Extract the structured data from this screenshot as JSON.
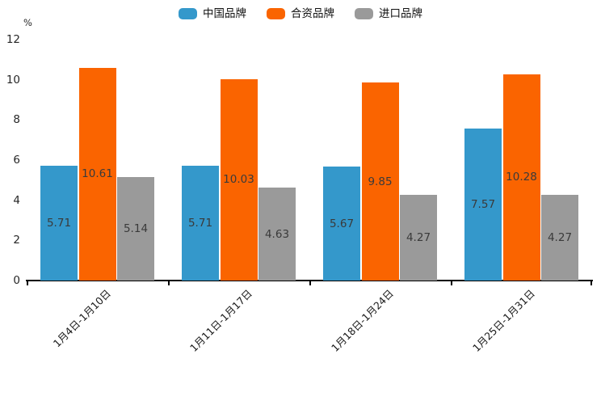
{
  "chart": {
    "unit_label": "%",
    "legend": [
      {
        "name": "中国品牌",
        "color": "#3498cb",
        "icon": "blue-series-swatch-icon"
      },
      {
        "name": "合资品牌",
        "color": "#fa6400",
        "icon": "orange-series-swatch-icon"
      },
      {
        "name": "进口品牌",
        "color": "#9a9a9a",
        "icon": "gray-series-swatch-icon"
      }
    ]
  },
  "chart_data": {
    "type": "bar",
    "title": "",
    "categories": [
      "1月4日-1月10日",
      "1月11日-1月17日",
      "1月18日-1月24日",
      "1月25日-1月31日"
    ],
    "series": [
      {
        "name": "中国品牌",
        "color": "#3498cb",
        "values": [
          5.71,
          5.71,
          5.67,
          7.57
        ]
      },
      {
        "name": "合资品牌",
        "color": "#fa6400",
        "values": [
          10.61,
          10.03,
          9.85,
          10.28
        ]
      },
      {
        "name": "进口品牌",
        "color": "#9a9a9a",
        "values": [
          5.14,
          4.63,
          4.27,
          4.27
        ]
      }
    ],
    "xlabel": "",
    "ylabel": "%",
    "ylim": [
      0,
      12
    ],
    "yticks": [
      0,
      2,
      4,
      6,
      8,
      10,
      12
    ],
    "grid": false,
    "legend_position": "top-center",
    "value_labels": "centered-inside-bars",
    "x_tick_label_rotation_deg": 45
  }
}
